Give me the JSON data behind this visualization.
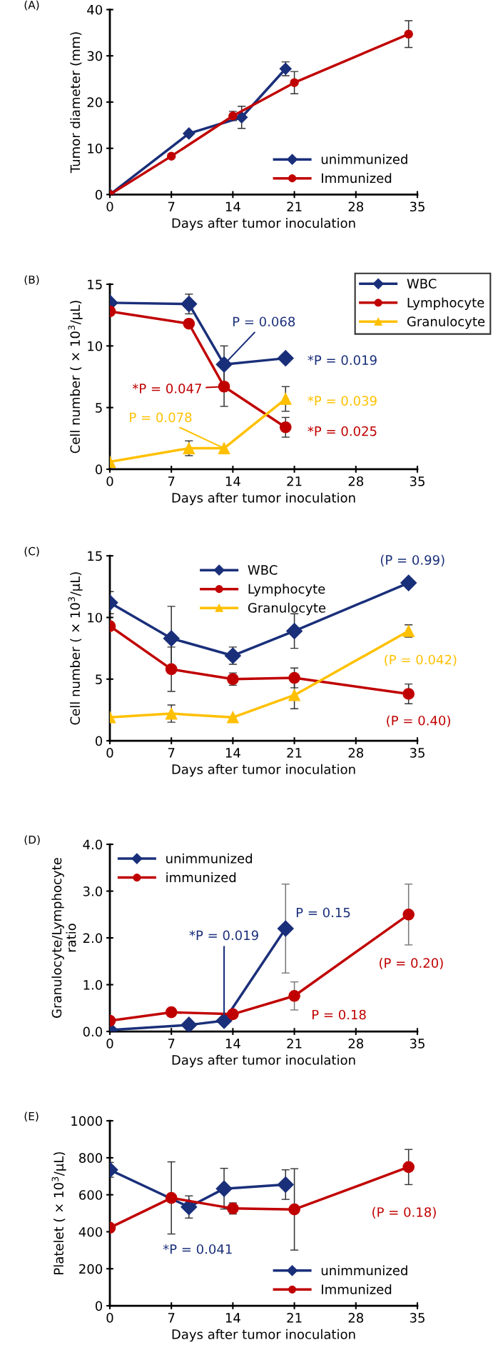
{
  "chart_data": [
    {
      "type": "line",
      "title": "(A)",
      "xlabel": "Days after tumor inoculation",
      "ylabel": "Tumor diameter (mm)",
      "xlim": [
        0,
        35
      ],
      "xticks": [
        0,
        7,
        14,
        21,
        28,
        35
      ],
      "ylim": [
        0,
        40
      ],
      "yticks": [
        0,
        10,
        20,
        30,
        40
      ],
      "legend": "lower right",
      "series": [
        {
          "name": "unimmunized",
          "color": "#1a2f7a",
          "marker": "diamond",
          "x": [
            0,
            9,
            15,
            20
          ],
          "values": [
            0,
            13.2,
            16.7,
            27.2
          ],
          "errors": [
            null,
            null,
            2.4,
            1.5
          ]
        },
        {
          "name": "Immunized",
          "color": "#c00000",
          "marker": "circle",
          "x": [
            0,
            7,
            14,
            21,
            34
          ],
          "values": [
            0,
            8.3,
            17.0,
            24.2,
            34.7
          ],
          "errors": [
            null,
            null,
            1.0,
            2.4,
            2.9
          ]
        }
      ]
    },
    {
      "type": "line",
      "title": "(B)",
      "xlabel": "Days after tumor inoculation",
      "ylabel": "Cell number ( × 10$^{3}$/μL)",
      "xlim": [
        0,
        35
      ],
      "xticks": [
        0,
        7,
        14,
        21,
        28,
        35
      ],
      "ylim": [
        0,
        15
      ],
      "yticks": [
        0,
        5,
        10,
        15
      ],
      "legend": "top right",
      "series": [
        {
          "name": "WBC",
          "color": "#1a2f7a",
          "marker": "diamond",
          "x": [
            0,
            9,
            13,
            20
          ],
          "values": [
            13.5,
            13.4,
            8.5,
            9.0
          ],
          "errors": [
            null,
            0.8,
            1.5,
            null
          ]
        },
        {
          "name": "Lymphocyte",
          "color": "#c00000",
          "marker": "circle",
          "x": [
            0,
            9,
            13,
            20
          ],
          "values": [
            12.8,
            11.8,
            6.7,
            3.4
          ],
          "errors": [
            null,
            null,
            1.6,
            0.8
          ]
        },
        {
          "name": "Granulocyte",
          "color": "#ffc000",
          "marker": "triangle",
          "x": [
            0,
            9,
            13,
            20
          ],
          "values": [
            0.6,
            1.7,
            1.7,
            5.7
          ],
          "errors": [
            null,
            0.6,
            null,
            1.0
          ]
        }
      ],
      "annotations": [
        {
          "text": "P = 0.068",
          "x": 13,
          "y": 8.5
        },
        {
          "text": "*P = 0.019",
          "x": 20,
          "y": 9.0
        },
        {
          "text": "*P = 0.047",
          "x": 13,
          "y": 6.7
        },
        {
          "text": "P = 0.078",
          "x": 13,
          "y": 1.7
        },
        {
          "text": "*P = 0.039",
          "x": 20,
          "y": 5.7
        },
        {
          "text": "*P = 0.025",
          "x": 20,
          "y": 3.4
        }
      ]
    },
    {
      "type": "line",
      "title": "(C)",
      "xlabel": "Days after tumor inoculation",
      "ylabel": "Cell number ( × 10$^{3}$/μL)",
      "xlim": [
        0,
        35
      ],
      "xticks": [
        0,
        7,
        14,
        21,
        28,
        35
      ],
      "ylim": [
        0,
        15
      ],
      "yticks": [
        0,
        5,
        10,
        15
      ],
      "legend": "top",
      "series": [
        {
          "name": "WBC",
          "color": "#1a2f7a",
          "marker": "diamond",
          "x": [
            0,
            7,
            14,
            21,
            34
          ],
          "values": [
            11.2,
            8.3,
            6.9,
            8.9,
            12.8
          ],
          "errors": [
            0.9,
            2.6,
            0.7,
            1.4,
            null
          ]
        },
        {
          "name": "Lymphocyte",
          "color": "#c00000",
          "marker": "circle",
          "x": [
            0,
            7,
            14,
            21,
            34
          ],
          "values": [
            9.3,
            5.8,
            5.0,
            5.1,
            3.8
          ],
          "errors": [
            null,
            1.8,
            0.5,
            0.8,
            0.8
          ]
        },
        {
          "name": "Granulocyte",
          "color": "#ffc000",
          "marker": "triangle",
          "x": [
            0,
            7,
            14,
            21,
            34
          ],
          "values": [
            1.9,
            2.2,
            1.9,
            3.7,
            8.9
          ],
          "errors": [
            null,
            0.7,
            null,
            1.1,
            0.5
          ]
        }
      ],
      "annotations": [
        {
          "text": "(P = 0.99)",
          "x": 34,
          "y": 12.8
        },
        {
          "text": "(P = 0.042)",
          "x": 34,
          "y": 8.9
        },
        {
          "text": "(P = 0.40)",
          "x": 34,
          "y": 3.8
        }
      ]
    },
    {
      "type": "line",
      "title": "(D)",
      "xlabel": "Days after tumor inoculation",
      "ylabel": "Granulocyte/Lymphocyte\nratio",
      "xlim": [
        0,
        35
      ],
      "xticks": [
        0,
        7,
        14,
        21,
        28,
        35
      ],
      "ylim": [
        0,
        4
      ],
      "yticks": [
        {
          "value": 0,
          "label": "0.0"
        },
        {
          "value": 1,
          "label": "1.0"
        },
        {
          "value": 2,
          "label": "2.0"
        },
        {
          "value": 3,
          "label": "3.0"
        },
        {
          "value": 4,
          "label": "4.0"
        }
      ],
      "legend": "top left",
      "series": [
        {
          "name": "unimmunized",
          "color": "#1a2f7a",
          "marker": "diamond",
          "x": [
            0,
            9,
            13,
            20
          ],
          "values": [
            0.03,
            0.14,
            0.23,
            2.2
          ],
          "errors": [
            null,
            null,
            null,
            0.95
          ]
        },
        {
          "name": "immunized",
          "color": "#c00000",
          "marker": "circle",
          "x": [
            0,
            7,
            14,
            21,
            34
          ],
          "values": [
            0.23,
            0.41,
            0.37,
            0.76,
            2.5
          ],
          "errors": [
            null,
            null,
            null,
            0.3,
            0.65
          ]
        }
      ],
      "annotations": [
        {
          "text": "*P = 0.019",
          "x": 13,
          "y": 0.23
        },
        {
          "text": "P = 0.15",
          "x": 20,
          "y": 2.2
        },
        "(P = 0.20)",
        {
          "text": "P = 0.18",
          "x": 21,
          "y": 0.76
        }
      ]
    },
    {
      "type": "line",
      "title": "(E)",
      "xlabel": "Days after tumor inoculation",
      "ylabel": "Platelet ( × 10$^{3}$/μL)",
      "xlim": [
        0,
        35
      ],
      "xticks": [
        0,
        7,
        14,
        21,
        28,
        35
      ],
      "ylim": [
        0,
        1000
      ],
      "yticks": [
        0,
        200,
        400,
        600,
        800,
        1000
      ],
      "legend": "bottom right",
      "series": [
        {
          "name": "unimmunized",
          "color": "#1a2f7a",
          "marker": "diamond",
          "x": [
            0,
            9,
            13,
            20
          ],
          "values": [
            735,
            534,
            633,
            655
          ],
          "errors": [
            40,
            60,
            110,
            80
          ]
        },
        {
          "name": "Immunized",
          "color": "#c00000",
          "marker": "circle",
          "x": [
            0,
            7,
            14,
            21,
            34
          ],
          "values": [
            422,
            583,
            526,
            521,
            750
          ],
          "errors": [
            null,
            195,
            30,
            220,
            95
          ]
        }
      ],
      "annotations": [
        "*P = 0.041",
        "(P = 0.18)"
      ]
    }
  ]
}
